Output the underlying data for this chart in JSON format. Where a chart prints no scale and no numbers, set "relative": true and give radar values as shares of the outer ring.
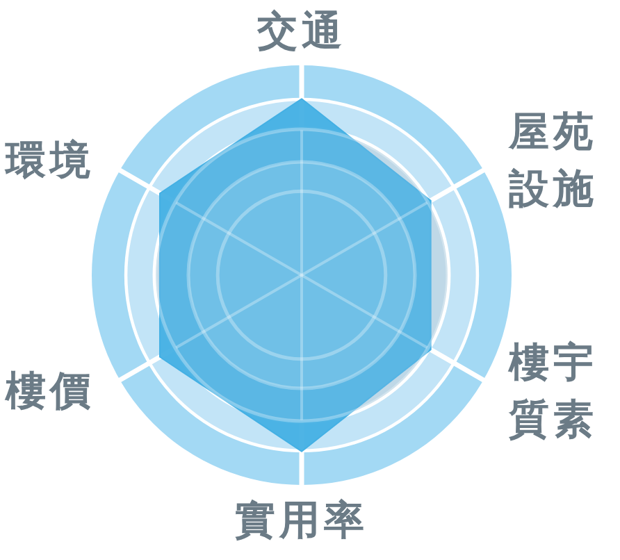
{
  "chart_data": {
    "type": "radar",
    "relative": true,
    "grid": true,
    "categories": [
      "交通",
      "屋苑設施",
      "樓宇質素",
      "實用率",
      "樓價",
      "環境"
    ],
    "series": [
      {
        "color": "#44b0e4",
        "values": [
          0.84,
          0.71,
          0.71,
          0.84,
          0.78,
          0.78
        ]
      }
    ]
  }
}
